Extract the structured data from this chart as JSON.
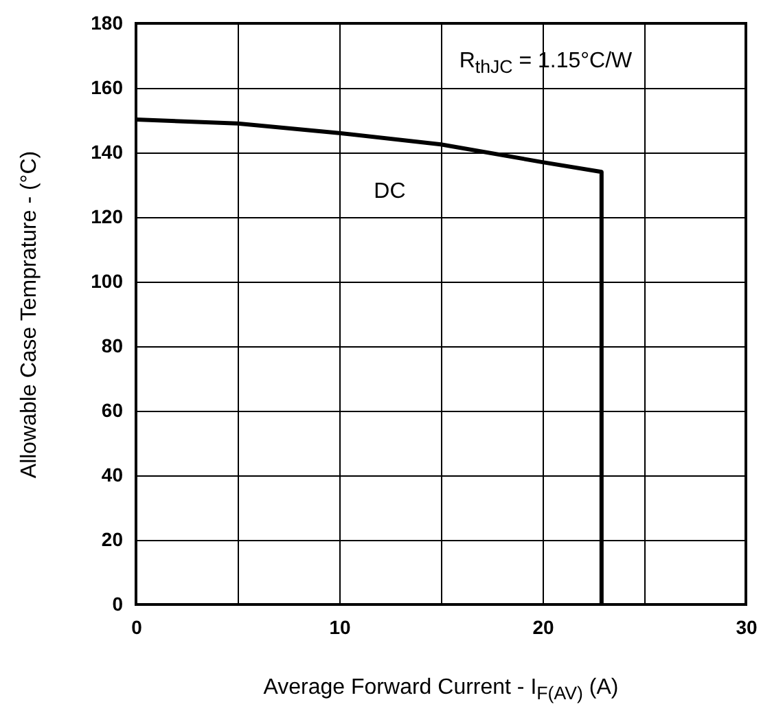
{
  "chart_data": {
    "type": "line",
    "xlabel": "Average Forward Current - I$_{F(AV)}$ (A)",
    "ylabel": "Allowable Case Temprature - (°C)",
    "x": [
      0,
      5,
      10,
      15,
      20,
      22.9,
      22.9
    ],
    "series": [
      {
        "color": "#000000",
        "values": [
          150.2,
          149,
          146,
          142.5,
          137,
          134,
          0
        ]
      }
    ],
    "xlim": [
      0,
      30
    ],
    "xticks": [
      0,
      {
        "value": 5,
        "label": null
      },
      10,
      {
        "value": 15,
        "label": null
      },
      20,
      {
        "value": 25,
        "label": null
      },
      30
    ],
    "ylim": [
      0,
      180
    ],
    "yticks": [
      0,
      20,
      40,
      60,
      80,
      100,
      120,
      140,
      160,
      180
    ],
    "grid": true,
    "marker": "none",
    "line_style": "solid",
    "annotations": [
      "DC",
      "R$_{thJC}$ = 1.15°C/W"
    ]
  }
}
